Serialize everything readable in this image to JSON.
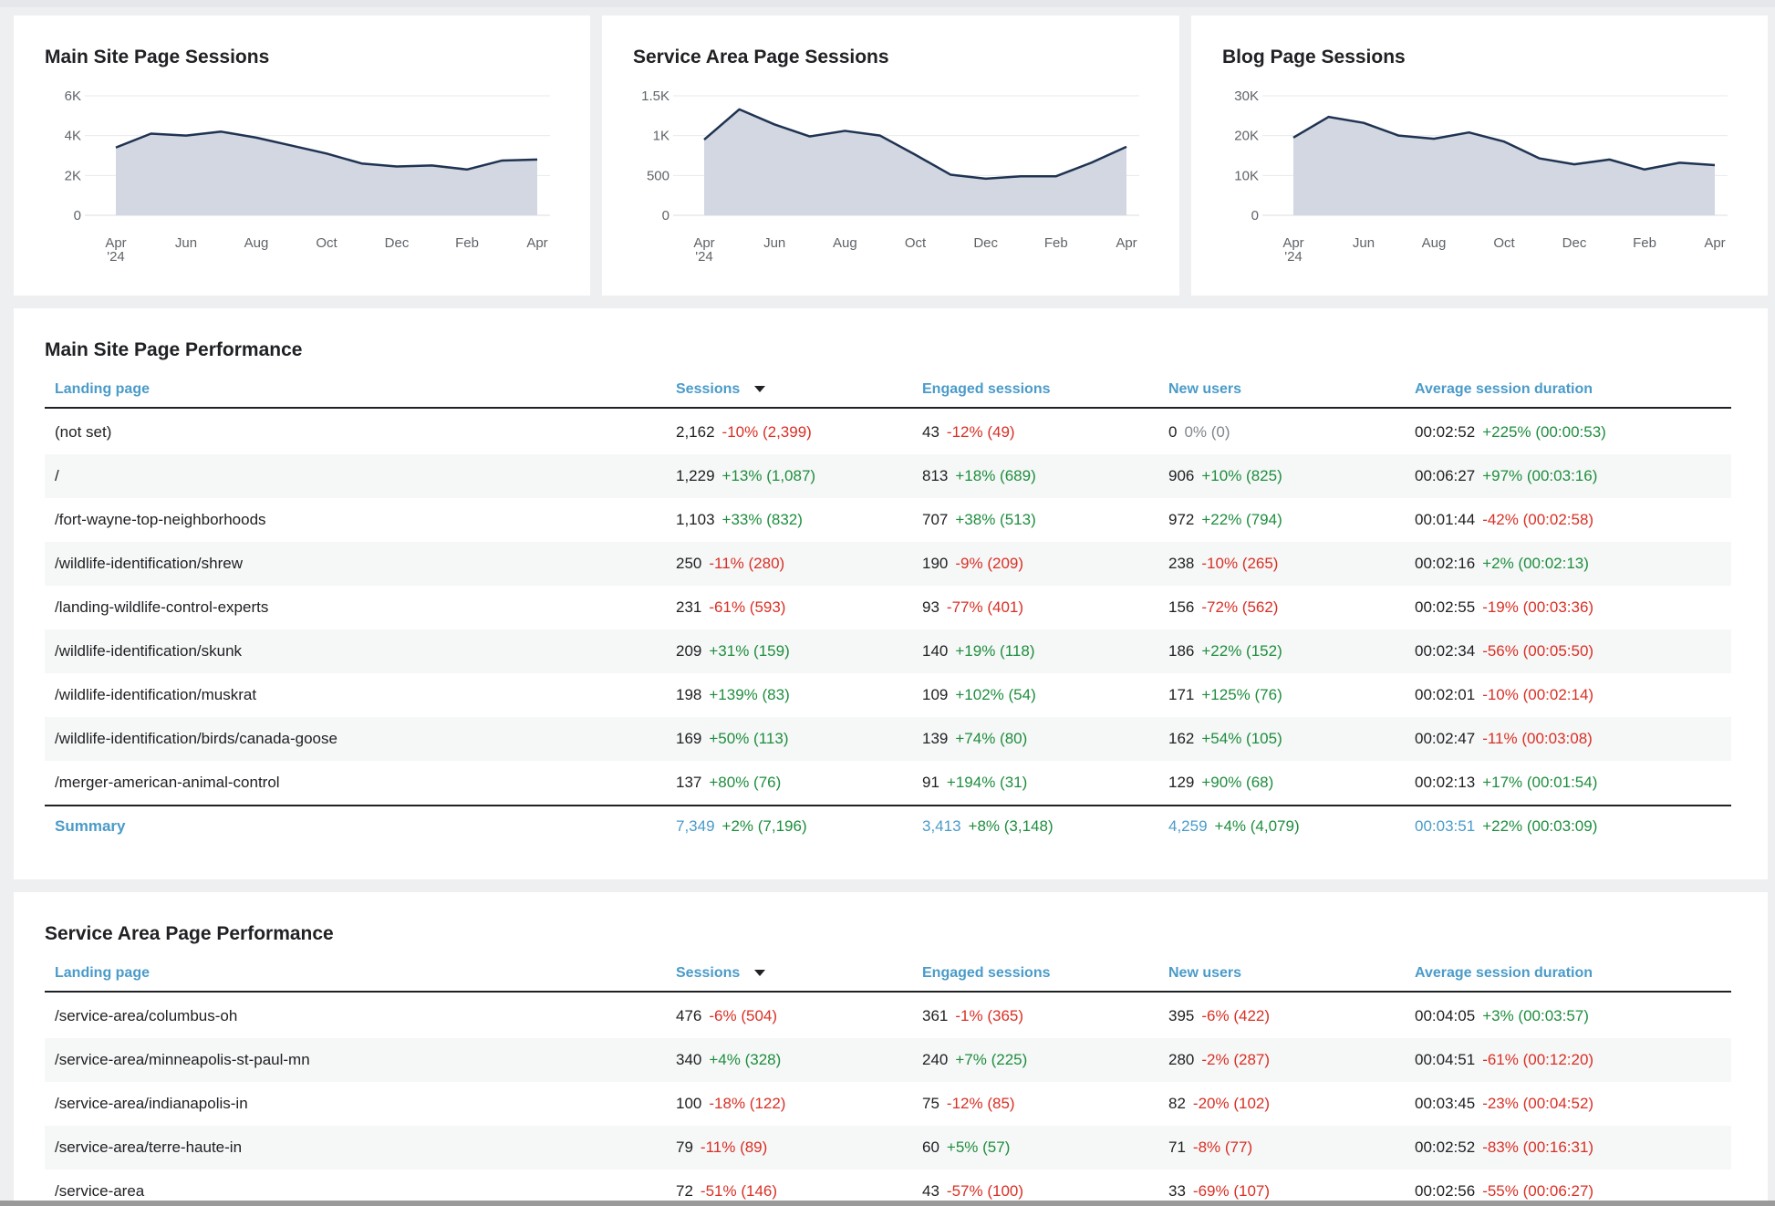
{
  "charts": [
    {
      "title": "Main Site Page Sessions",
      "y_ticks": [
        "6K",
        "4K",
        "2K",
        "0"
      ],
      "x_ticks": [
        "Apr",
        "Jun",
        "Aug",
        "Oct",
        "Dec",
        "Feb",
        "Apr"
      ],
      "x_sub": "'24",
      "chart_data": {
        "type": "area",
        "ylim": [
          0,
          6000
        ],
        "values": [
          3400,
          4100,
          4000,
          4200,
          3900,
          3500,
          3100,
          2600,
          2450,
          2500,
          2300,
          2750,
          2800
        ]
      }
    },
    {
      "title": "Service Area Page Sessions",
      "y_ticks": [
        "1.5K",
        "1K",
        "500",
        "0"
      ],
      "x_ticks": [
        "Apr",
        "Jun",
        "Aug",
        "Oct",
        "Dec",
        "Feb",
        "Apr"
      ],
      "x_sub": "'24",
      "chart_data": {
        "type": "area",
        "ylim": [
          0,
          1500
        ],
        "values": [
          950,
          1330,
          1140,
          990,
          1060,
          1000,
          760,
          510,
          460,
          490,
          490,
          660,
          860
        ]
      }
    },
    {
      "title": "Blog Page Sessions",
      "y_ticks": [
        "30K",
        "20K",
        "10K",
        "0"
      ],
      "x_ticks": [
        "Apr",
        "Jun",
        "Aug",
        "Oct",
        "Dec",
        "Feb",
        "Apr"
      ],
      "x_sub": "'24",
      "chart_data": {
        "type": "area",
        "ylim": [
          0,
          30000
        ],
        "values": [
          19500,
          24700,
          23200,
          20000,
          19200,
          20800,
          18500,
          14300,
          12800,
          14000,
          11500,
          13200,
          12600
        ]
      }
    }
  ],
  "tables": [
    {
      "title": "Main Site Page Performance",
      "headers": {
        "landing": "Landing page",
        "sessions": "Sessions",
        "engaged": "Engaged sessions",
        "new_users": "New users",
        "avg_duration": "Average session duration"
      },
      "rows": [
        {
          "page": "(not set)",
          "s": "2,162",
          "sd": "-10% (2,399)",
          "e": "43",
          "ed": "-12% (49)",
          "n": "0",
          "nd": "0% (0)",
          "a": "00:02:52",
          "ad": "+225% (00:00:53)"
        },
        {
          "page": "/",
          "s": "1,229",
          "sd": "+13% (1,087)",
          "e": "813",
          "ed": "+18% (689)",
          "n": "906",
          "nd": "+10% (825)",
          "a": "00:06:27",
          "ad": "+97% (00:03:16)"
        },
        {
          "page": "/fort-wayne-top-neighborhoods",
          "s": "1,103",
          "sd": "+33% (832)",
          "e": "707",
          "ed": "+38% (513)",
          "n": "972",
          "nd": "+22% (794)",
          "a": "00:01:44",
          "ad": "-42% (00:02:58)"
        },
        {
          "page": "/wildlife-identification/shrew",
          "s": "250",
          "sd": "-11% (280)",
          "e": "190",
          "ed": "-9% (209)",
          "n": "238",
          "nd": "-10% (265)",
          "a": "00:02:16",
          "ad": "+2% (00:02:13)"
        },
        {
          "page": "/landing-wildlife-control-experts",
          "s": "231",
          "sd": "-61% (593)",
          "e": "93",
          "ed": "-77% (401)",
          "n": "156",
          "nd": "-72% (562)",
          "a": "00:02:55",
          "ad": "-19% (00:03:36)"
        },
        {
          "page": "/wildlife-identification/skunk",
          "s": "209",
          "sd": "+31% (159)",
          "e": "140",
          "ed": "+19% (118)",
          "n": "186",
          "nd": "+22% (152)",
          "a": "00:02:34",
          "ad": "-56% (00:05:50)"
        },
        {
          "page": "/wildlife-identification/muskrat",
          "s": "198",
          "sd": "+139% (83)",
          "e": "109",
          "ed": "+102% (54)",
          "n": "171",
          "nd": "+125% (76)",
          "a": "00:02:01",
          "ad": "-10% (00:02:14)"
        },
        {
          "page": "/wildlife-identification/birds/canada-goose",
          "s": "169",
          "sd": "+50% (113)",
          "e": "139",
          "ed": "+74% (80)",
          "n": "162",
          "nd": "+54% (105)",
          "a": "00:02:47",
          "ad": "-11% (00:03:08)"
        },
        {
          "page": "/merger-american-animal-control",
          "s": "137",
          "sd": "+80% (76)",
          "e": "91",
          "ed": "+194% (31)",
          "n": "129",
          "nd": "+90% (68)",
          "a": "00:02:13",
          "ad": "+17% (00:01:54)"
        }
      ],
      "summary": {
        "label": "Summary",
        "s": "7,349",
        "sd": "+2% (7,196)",
        "e": "3,413",
        "ed": "+8% (3,148)",
        "n": "4,259",
        "nd": "+4% (4,079)",
        "a": "00:03:51",
        "ad": "+22% (00:03:09)"
      }
    },
    {
      "title": "Service Area Page Performance",
      "headers": {
        "landing": "Landing page",
        "sessions": "Sessions",
        "engaged": "Engaged sessions",
        "new_users": "New users",
        "avg_duration": "Average session duration"
      },
      "rows": [
        {
          "page": "/service-area/columbus-oh",
          "s": "476",
          "sd": "-6% (504)",
          "e": "361",
          "ed": "-1% (365)",
          "n": "395",
          "nd": "-6% (422)",
          "a": "00:04:05",
          "ad": "+3% (00:03:57)"
        },
        {
          "page": "/service-area/minneapolis-st-paul-mn",
          "s": "340",
          "sd": "+4% (328)",
          "e": "240",
          "ed": "+7% (225)",
          "n": "280",
          "nd": "-2% (287)",
          "a": "00:04:51",
          "ad": "-61% (00:12:20)"
        },
        {
          "page": "/service-area/indianapolis-in",
          "s": "100",
          "sd": "-18% (122)",
          "e": "75",
          "ed": "-12% (85)",
          "n": "82",
          "nd": "-20% (102)",
          "a": "00:03:45",
          "ad": "-23% (00:04:52)"
        },
        {
          "page": "/service-area/terre-haute-in",
          "s": "79",
          "sd": "-11% (89)",
          "e": "60",
          "ed": "+5% (57)",
          "n": "71",
          "nd": "-8% (77)",
          "a": "00:02:52",
          "ad": "-83% (00:16:31)"
        },
        {
          "page": "/service-area",
          "s": "72",
          "sd": "-51% (146)",
          "e": "43",
          "ed": "-57% (100)",
          "n": "33",
          "nd": "-69% (107)",
          "a": "00:02:56",
          "ad": "-55% (00:06:27)"
        }
      ]
    }
  ],
  "colors": {
    "line": "#1f3352",
    "area": "#d2d7e2",
    "link": "#4a9bc9",
    "positive": "#1e8e3e",
    "negative": "#d93025"
  }
}
